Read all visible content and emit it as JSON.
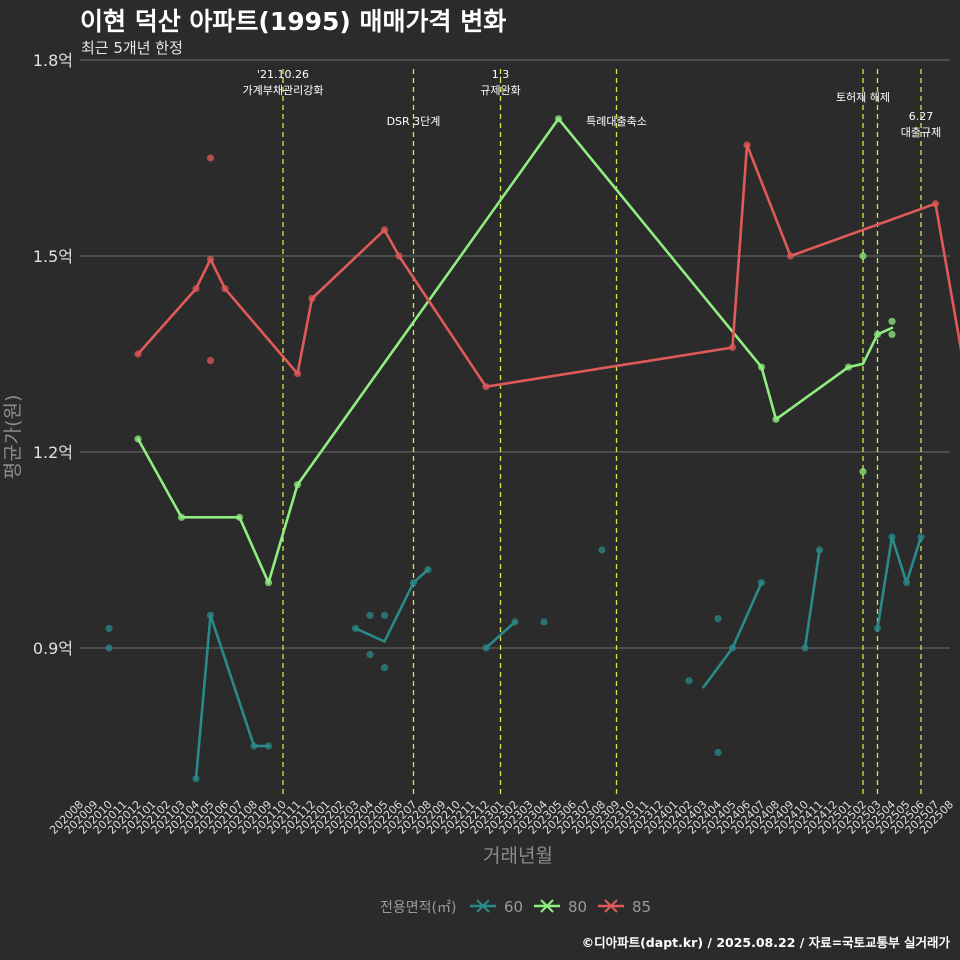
{
  "chart_data": {
    "type": "line",
    "title": "이현 덕산 아파트(1995) 매매가격 변화",
    "subtitle": "최근 5개년 한정",
    "xlabel": "거래년월",
    "ylabel": "평균가(원)",
    "y_unit": "억",
    "ylim": [
      0.675,
      1.8
    ],
    "y_ticks": [
      {
        "value": 0.9,
        "label": "0.9억"
      },
      {
        "value": 1.2,
        "label": "1.2억"
      },
      {
        "value": 1.5,
        "label": "1.5억"
      },
      {
        "value": 1.8,
        "label": "1.8억"
      }
    ],
    "grid": true,
    "legend_position": "bottom",
    "legend_title": "전용면적(㎡)",
    "categories": [
      "202008",
      "202009",
      "202010",
      "202011",
      "202012",
      "202101",
      "202102",
      "202103",
      "202104",
      "202105",
      "202106",
      "202107",
      "202108",
      "202109",
      "202110",
      "202111",
      "202112",
      "202201",
      "202202",
      "202203",
      "202204",
      "202205",
      "202206",
      "202207",
      "202208",
      "202209",
      "202210",
      "202211",
      "202212",
      "202301",
      "202302",
      "202303",
      "202304",
      "202305",
      "202306",
      "202307",
      "202308",
      "202309",
      "202310",
      "202311",
      "202312",
      "202401",
      "202402",
      "202403",
      "202404",
      "202405",
      "202406",
      "202407",
      "202408",
      "202409",
      "202410",
      "202411",
      "202412",
      "202501",
      "202502",
      "202503",
      "202504",
      "202505",
      "202506",
      "202507",
      "202508"
    ],
    "series": [
      {
        "name": "60",
        "color": "#2a8a8a",
        "line": [
          [
            "202104",
            0.7
          ],
          [
            "202105",
            0.95
          ],
          [
            "202108",
            0.75
          ],
          [
            "202109",
            0.75
          ],
          null,
          [
            "202203",
            0.93
          ],
          [
            "202205",
            0.91
          ],
          [
            "202207",
            1.0
          ],
          [
            "202208",
            1.02
          ],
          null,
          [
            "202212",
            0.9
          ],
          [
            "202302",
            0.94
          ],
          null,
          [
            "202403",
            0.84
          ],
          [
            "202405",
            0.9
          ],
          [
            "202407",
            1.0
          ],
          null,
          [
            "202410",
            0.9
          ],
          [
            "202411",
            1.05
          ],
          null,
          [
            "202503",
            0.93
          ],
          [
            "202504",
            1.07
          ],
          [
            "202505",
            1.0
          ],
          [
            "202506",
            1.07
          ]
        ],
        "points": [
          [
            "202010",
            0.93
          ],
          [
            "202010",
            0.9
          ],
          [
            "202104",
            0.7
          ],
          [
            "202105",
            0.95
          ],
          [
            "202108",
            0.75
          ],
          [
            "202109",
            0.75
          ],
          [
            "202203",
            0.93
          ],
          [
            "202204",
            0.89
          ],
          [
            "202204",
            0.95
          ],
          [
            "202205",
            0.95
          ],
          [
            "202205",
            0.87
          ],
          [
            "202207",
            1.0
          ],
          [
            "202208",
            1.02
          ],
          [
            "202212",
            0.9
          ],
          [
            "202302",
            0.94
          ],
          [
            "202304",
            0.94
          ],
          [
            "202308",
            1.05
          ],
          [
            "202402",
            0.85
          ],
          [
            "202404",
            0.74
          ],
          [
            "202404",
            0.945
          ],
          [
            "202405",
            0.9
          ],
          [
            "202407",
            1.0
          ],
          [
            "202410",
            0.9
          ],
          [
            "202411",
            1.05
          ],
          [
            "202503",
            0.93
          ],
          [
            "202504",
            1.07
          ],
          [
            "202505",
            1.0
          ],
          [
            "202506",
            1.07
          ]
        ]
      },
      {
        "name": "80",
        "color": "#90ee80",
        "line": [
          [
            "202012",
            1.22
          ],
          [
            "202103",
            1.1
          ],
          [
            "202107",
            1.1
          ],
          [
            "202109",
            1.0
          ],
          [
            "202111",
            1.15
          ],
          [
            "202305",
            1.71
          ],
          [
            "202407",
            1.33
          ],
          [
            "202408",
            1.25
          ],
          [
            "202501",
            1.33
          ],
          [
            "202502",
            1.335
          ],
          [
            "202503",
            1.38
          ],
          [
            "202504",
            1.39
          ]
        ],
        "points": [
          [
            "202012",
            1.22
          ],
          [
            "202103",
            1.1
          ],
          [
            "202107",
            1.1
          ],
          [
            "202109",
            1.0
          ],
          [
            "202111",
            1.15
          ],
          [
            "202305",
            1.71
          ],
          [
            "202407",
            1.33
          ],
          [
            "202408",
            1.25
          ],
          [
            "202501",
            1.33
          ],
          [
            "202502",
            1.5
          ],
          [
            "202502",
            1.17
          ],
          [
            "202503",
            1.38
          ],
          [
            "202504",
            1.4
          ],
          [
            "202504",
            1.38
          ]
        ]
      },
      {
        "name": "85",
        "color": "#e05a5a",
        "line": [
          [
            "202012",
            1.35
          ],
          [
            "202104",
            1.45
          ],
          [
            "202105",
            1.495
          ],
          [
            "202106",
            1.45
          ],
          [
            "202111",
            1.32
          ],
          [
            "202112",
            1.435
          ],
          [
            "202205",
            1.54
          ],
          [
            "202206",
            1.5
          ],
          [
            "202212",
            1.3
          ],
          [
            "202405",
            1.36
          ],
          [
            "202406",
            1.67
          ],
          [
            "202409",
            1.5
          ],
          [
            "202507",
            1.58
          ],
          [
            "202510",
            1.2
          ]
        ],
        "points": [
          [
            "202012",
            1.35
          ],
          [
            "202104",
            1.45
          ],
          [
            "202105",
            1.495
          ],
          [
            "202105",
            1.65
          ],
          [
            "202105",
            1.34
          ],
          [
            "202106",
            1.45
          ],
          [
            "202111",
            1.32
          ],
          [
            "202112",
            1.435
          ],
          [
            "202205",
            1.54
          ],
          [
            "202206",
            1.5
          ],
          [
            "202212",
            1.3
          ],
          [
            "202405",
            1.36
          ],
          [
            "202406",
            1.67
          ],
          [
            "202409",
            1.5
          ],
          [
            "202507",
            1.58
          ],
          [
            "202510",
            1.2
          ]
        ]
      }
    ],
    "annotations": [
      {
        "month": "202110",
        "lines": [
          "'21.10.26",
          "가계부채관리강화"
        ],
        "level": 0
      },
      {
        "month": "202207",
        "lines": [
          "DSR 3단계"
        ],
        "level": 1
      },
      {
        "month": "202301",
        "lines": [
          "1.3",
          "규제완화"
        ],
        "level": 0
      },
      {
        "month": "202309",
        "lines": [
          "특례대출축소"
        ],
        "level": 1
      },
      {
        "month": "202502",
        "lines": [
          "토허제 해제"
        ],
        "level": 0
      },
      {
        "month": "202503",
        "lines": [],
        "level": 0
      },
      {
        "month": "202506",
        "lines": [
          "6.27",
          "대출규제"
        ],
        "level": 1
      }
    ],
    "annotation_color": "#d4e84a"
  },
  "caption": "©디아파트(dapt.kr) / 2025.08.22 / 자료=국토교통부 실거래가"
}
